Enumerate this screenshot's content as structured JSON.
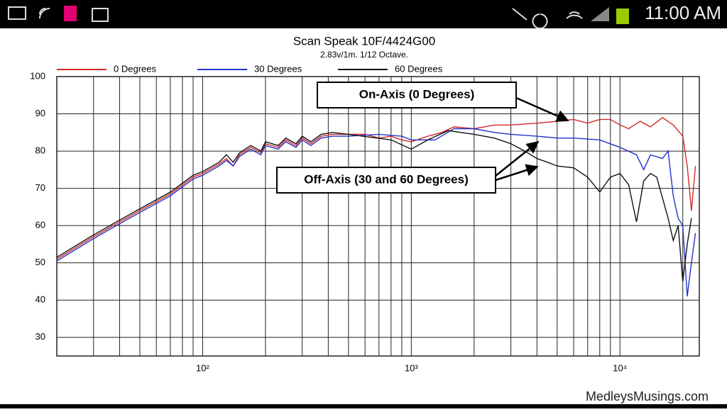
{
  "status_bar": {
    "time": "11:00 AM"
  },
  "chart_data": {
    "type": "line",
    "title": "Scan Speak 10F/4424G00",
    "subtitle": "2.83v/1m.  1/12 Octave.",
    "log_x": true,
    "grid": true,
    "legend": "top",
    "xlim": [
      20,
      24000
    ],
    "ylim": [
      25,
      100
    ],
    "xticks": [
      {
        "value": 100,
        "label": "10²"
      },
      {
        "value": 1000,
        "label": "10³"
      },
      {
        "value": 10000,
        "label": "10⁴"
      }
    ],
    "x_minor_ticks": [
      20,
      30,
      40,
      50,
      60,
      70,
      80,
      90,
      200,
      300,
      400,
      500,
      600,
      700,
      800,
      900,
      2000,
      3000,
      4000,
      5000,
      6000,
      7000,
      8000,
      9000,
      20000
    ],
    "yticks": [
      30,
      40,
      50,
      60,
      70,
      80,
      90,
      100
    ],
    "series": [
      {
        "name": "0 Degrees",
        "color": "#d42a2a",
        "x": [
          20,
          30,
          40,
          50,
          70,
          90,
          100,
          120,
          130,
          140,
          150,
          170,
          190,
          200,
          230,
          250,
          280,
          300,
          330,
          370,
          420,
          500,
          600,
          700,
          800,
          900,
          1000,
          1200,
          1400,
          1600,
          2000,
          2500,
          3000,
          4000,
          5000,
          6000,
          7000,
          8000,
          9000,
          10000,
          11000,
          12500,
          14000,
          16000,
          18000,
          20000,
          21000,
          22000,
          23000
        ],
        "values": [
          51,
          57,
          61,
          64,
          68.5,
          73,
          74,
          76.5,
          78,
          76,
          79,
          81,
          79.5,
          82,
          81,
          83,
          81.5,
          83.5,
          82,
          84,
          84.5,
          84.5,
          84.5,
          83.5,
          84,
          83,
          82.5,
          84,
          85,
          86.5,
          86,
          87,
          87,
          87.5,
          88,
          88.5,
          87.5,
          88.5,
          88.5,
          87,
          86,
          88,
          86.5,
          89,
          87,
          84,
          76,
          64,
          76
        ]
      },
      {
        "name": "30 Degrees",
        "color": "#2233cc",
        "x": [
          20,
          30,
          40,
          50,
          70,
          90,
          100,
          120,
          130,
          140,
          150,
          170,
          190,
          200,
          230,
          250,
          280,
          300,
          330,
          370,
          420,
          500,
          700,
          900,
          1000,
          1300,
          1600,
          2000,
          2500,
          3000,
          4000,
          5000,
          6000,
          8000,
          10000,
          12000,
          13000,
          14000,
          16000,
          17000,
          18000,
          19000,
          20000,
          21000,
          22000,
          23000
        ],
        "values": [
          50.5,
          56.5,
          60.5,
          63.5,
          68,
          72.5,
          73.5,
          76,
          77.5,
          76,
          78.5,
          80.5,
          79,
          81.5,
          80.5,
          82.5,
          81,
          83,
          81.5,
          83.5,
          84,
          84,
          84.5,
          84,
          83,
          83,
          86,
          86,
          85,
          84.5,
          84,
          83.5,
          83.5,
          83,
          81,
          79,
          75,
          79,
          78,
          80,
          68,
          62,
          60,
          41,
          50,
          58
        ]
      },
      {
        "name": "60 Degrees",
        "color": "#111111",
        "x": [
          20,
          30,
          40,
          50,
          70,
          90,
          100,
          120,
          130,
          140,
          150,
          170,
          190,
          200,
          230,
          250,
          280,
          300,
          330,
          370,
          420,
          500,
          800,
          1000,
          1200,
          1500,
          2000,
          2500,
          3000,
          3500,
          4000,
          4500,
          5000,
          6000,
          7000,
          8000,
          9000,
          10000,
          11000,
          12000,
          13000,
          14000,
          15000,
          17000,
          18000,
          19000,
          20000,
          21000,
          22000
        ],
        "values": [
          51.5,
          57.5,
          61.5,
          64.5,
          69,
          73.5,
          74.5,
          77,
          79,
          77,
          79.5,
          81.5,
          80,
          82.5,
          81.5,
          83.5,
          82,
          84,
          82.5,
          84.5,
          85,
          84.5,
          83,
          80.5,
          83,
          85.5,
          84.5,
          83.5,
          82,
          80,
          78,
          77,
          76,
          75.5,
          73,
          69,
          73,
          74,
          71,
          61,
          72,
          74,
          73,
          62,
          56,
          60,
          45,
          55,
          62
        ]
      }
    ],
    "annotations": [
      "On-Axis (0 Degrees)",
      "Off-Axis (30 and 60 Degrees)"
    ]
  },
  "watermark": "MedleysMusings.com"
}
